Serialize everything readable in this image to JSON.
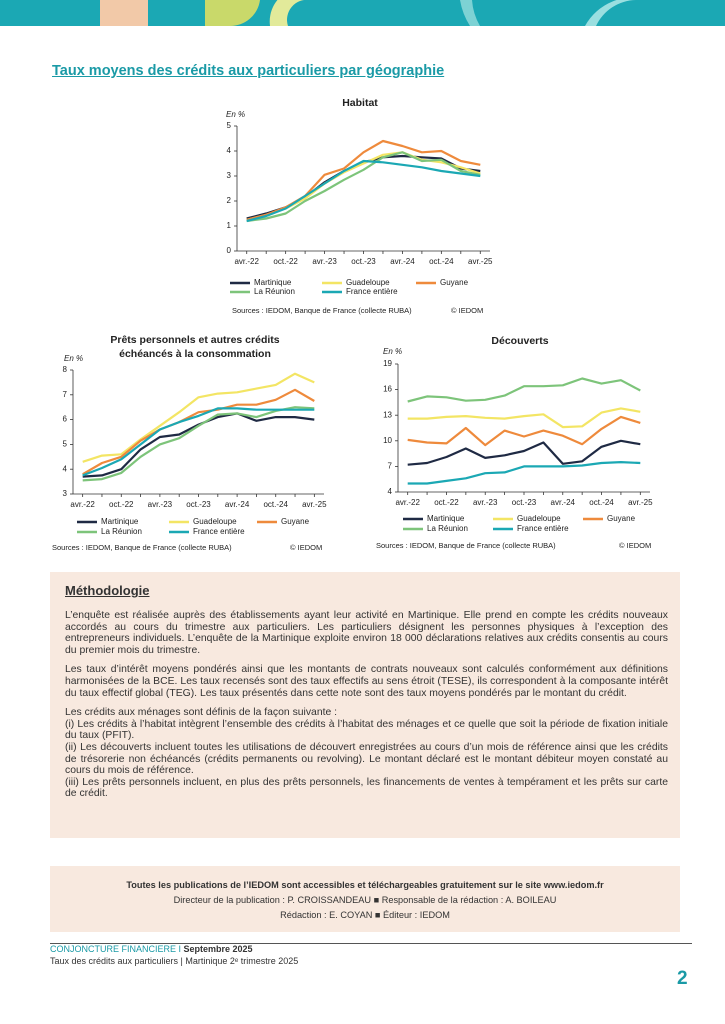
{
  "section_title": "Taux moyens des crédits aux particuliers par géographie",
  "chart_data": [
    {
      "type": "line",
      "title": "Habitat",
      "unit": "En %",
      "categories": [
        "avr.-22",
        null,
        "oct.-22",
        null,
        "avr.-23",
        null,
        "oct.-23",
        null,
        "avr.-24",
        null,
        "oct.-24",
        null,
        "avr.-25"
      ],
      "ylim": [
        0,
        5
      ],
      "yticks": [
        0,
        1,
        2,
        3,
        4,
        5
      ],
      "series": [
        {
          "name": "Martinique",
          "color": "#1f2a44",
          "values": [
            1.3,
            1.5,
            1.75,
            2.15,
            2.75,
            3.2,
            3.55,
            3.75,
            3.8,
            3.75,
            3.7,
            3.3,
            3.2
          ]
        },
        {
          "name": "Guadeloupe",
          "color": "#f3e564",
          "values": [
            1.25,
            1.45,
            1.7,
            2.1,
            2.7,
            3.15,
            3.5,
            3.85,
            3.95,
            3.65,
            3.55,
            3.35,
            3.1
          ]
        },
        {
          "name": "Guyane",
          "color": "#ee8a3c",
          "values": [
            1.25,
            1.45,
            1.75,
            2.2,
            3.05,
            3.3,
            3.95,
            4.4,
            4.2,
            3.95,
            4.0,
            3.6,
            3.45
          ]
        },
        {
          "name": "La Réunion",
          "color": "#7dc47a",
          "values": [
            1.2,
            1.3,
            1.5,
            2.0,
            2.4,
            2.85,
            3.25,
            3.75,
            3.95,
            3.6,
            3.65,
            3.2,
            3.05
          ]
        },
        {
          "name": "France entière",
          "color": "#1ba8b4",
          "values": [
            1.2,
            1.4,
            1.7,
            2.2,
            2.7,
            3.2,
            3.6,
            3.55,
            3.45,
            3.35,
            3.2,
            3.1,
            3.0
          ]
        }
      ],
      "source": "Sources : IEDOM, Banque de France (collecte RUBA)",
      "copyright": "© IEDOM"
    },
    {
      "type": "line",
      "title": [
        "Prêts personnels et autres crédits",
        "échéancés à la consommation"
      ],
      "unit": "En %",
      "categories": [
        "avr.-22",
        null,
        "oct.-22",
        null,
        "avr.-23",
        null,
        "oct.-23",
        null,
        "avr.-24",
        null,
        "oct.-24",
        null,
        "avr.-25"
      ],
      "ylim": [
        3,
        8
      ],
      "yticks": [
        3,
        4,
        5,
        6,
        7,
        8
      ],
      "series": [
        {
          "name": "Martinique",
          "color": "#1f2a44",
          "values": [
            3.7,
            3.75,
            4.0,
            4.8,
            5.3,
            5.4,
            5.8,
            6.1,
            6.25,
            5.95,
            6.1,
            6.1,
            6.0
          ]
        },
        {
          "name": "Guadeloupe",
          "color": "#f3e564",
          "values": [
            4.3,
            4.55,
            4.6,
            5.2,
            5.75,
            6.3,
            6.9,
            7.05,
            7.1,
            7.25,
            7.4,
            7.85,
            7.5
          ]
        },
        {
          "name": "Guyane",
          "color": "#ee8a3c",
          "values": [
            3.8,
            4.25,
            4.5,
            5.15,
            5.6,
            5.9,
            6.3,
            6.4,
            6.6,
            6.6,
            6.8,
            7.2,
            6.75
          ]
        },
        {
          "name": "La Réunion",
          "color": "#7dc47a",
          "values": [
            3.55,
            3.6,
            3.85,
            4.5,
            5.0,
            5.25,
            5.75,
            6.2,
            6.25,
            6.1,
            6.35,
            6.5,
            6.45
          ]
        },
        {
          "name": "France entière",
          "color": "#1ba8b4",
          "values": [
            3.75,
            4.05,
            4.4,
            5.0,
            5.6,
            5.9,
            6.15,
            6.45,
            6.45,
            6.4,
            6.4,
            6.4,
            6.4
          ]
        }
      ],
      "source": "Sources : IEDOM, Banque de France (collecte RUBA)",
      "copyright": "© IEDOM"
    },
    {
      "type": "line",
      "title": "Découverts",
      "unit": "En %",
      "categories": [
        "avr.-22",
        null,
        "oct.-22",
        null,
        "avr.-23",
        null,
        "oct.-23",
        null,
        "avr.-24",
        null,
        "oct.-24",
        null,
        "avr.-25"
      ],
      "ylim": [
        4,
        19
      ],
      "yticks": [
        4,
        7,
        10,
        13,
        16,
        19
      ],
      "series": [
        {
          "name": "Martinique",
          "color": "#1f2a44",
          "values": [
            7.2,
            7.4,
            8.1,
            9.1,
            8.0,
            8.3,
            8.8,
            9.8,
            7.3,
            7.6,
            9.3,
            10.0,
            9.6
          ]
        },
        {
          "name": "Guadeloupe",
          "color": "#f3e564",
          "values": [
            12.6,
            12.6,
            12.8,
            12.9,
            12.7,
            12.6,
            12.9,
            13.1,
            11.6,
            11.7,
            13.3,
            13.8,
            13.4
          ]
        },
        {
          "name": "Guyane",
          "color": "#ee8a3c",
          "values": [
            10.1,
            9.8,
            9.7,
            11.5,
            9.5,
            11.2,
            10.5,
            11.2,
            10.6,
            9.6,
            11.4,
            12.8,
            12.1
          ]
        },
        {
          "name": "La Réunion",
          "color": "#7dc47a",
          "values": [
            14.6,
            15.2,
            15.1,
            14.7,
            14.8,
            15.3,
            16.4,
            16.4,
            16.5,
            17.3,
            16.7,
            17.1,
            15.9
          ]
        },
        {
          "name": "France entière",
          "color": "#1ba8b4",
          "values": [
            5.0,
            5.0,
            5.3,
            5.6,
            6.2,
            6.3,
            7.0,
            7.0,
            7.0,
            7.1,
            7.4,
            7.5,
            7.4
          ]
        }
      ],
      "source": "Sources : IEDOM, Banque de France (collecte RUBA)",
      "copyright": "© IEDOM"
    }
  ],
  "methodology": {
    "title": "Méthodologie",
    "paragraphs": [
      [
        "L’enquête est réalisée auprès des établissements ayant leur activité en Martinique. Elle prend en compte les crédits nouveaux accordés au cours du trimestre aux particuliers. Les particuliers désignent les personnes physiques à l’exception des entrepreneurs individuels. L’enquête de la Martinique exploite environ 18 000 déclarations relatives aux crédits consentis au cours du premier mois du trimestre."
      ],
      [
        "Les taux d’intérêt moyens pondérés ainsi que les montants de contrats nouveaux sont calculés conformément aux définitions harmonisées de la BCE. Les taux recensés sont des taux effectifs au sens étroit (TESE), ils correspondent à la composante intérêt du taux effectif global (TEG). Les taux présentés dans cette note sont des taux moyens pondérés par le montant du crédit."
      ],
      [
        "Les crédits aux ménages sont définis de la façon suivante :",
        "(i) Les crédits à l’habitat intègrent l’ensemble des crédits à l’habitat des ménages et ce quelle que soit la période de fixation initiale du taux (PFIT).",
        "(ii) Les découverts incluent toutes les utilisations de découvert enregistrées au cours d’un mois de référence ainsi que les crédits de trésorerie non échéancés (crédits permanents ou revolving). Le montant déclaré est le montant débiteur moyen constaté au cours du mois de référence.",
        "(iii) Les prêts personnels incluent, en plus des prêts personnels, les financements de ventes à tempérament et les prêts sur carte de crédit."
      ]
    ]
  },
  "credits": [
    "Toutes les publications de l’IEDOM sont accessibles et téléchargeables gratuitement sur le site www.iedom.fr",
    "Directeur de la publication : P. CROISSANDEAU ■ Responsable de la rédaction : A. BOILEAU",
    "Rédaction : E. COYAN ■ Éditeur : IEDOM"
  ],
  "footer": {
    "publication": "CONJONCTURE FINANCIERE I ",
    "date": "Septembre 2025",
    "subtitle": "Taux des crédits aux particuliers | Martinique 2ᵉ trimestre 2025",
    "page": "2"
  }
}
